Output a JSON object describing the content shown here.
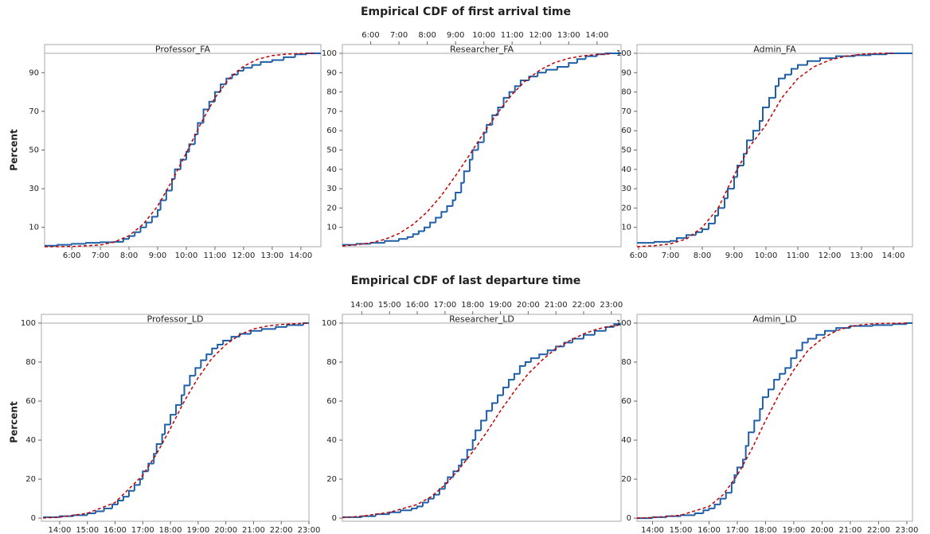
{
  "sections": [
    {
      "title": "Empirical CDF of first arrival time"
    },
    {
      "title": "Empirical CDF of last departure time"
    }
  ],
  "chart_data": [
    {
      "type": "ecdf",
      "title": "Professor_FA",
      "ylabel": "Percent",
      "xaxis_side": "bottom",
      "xlim": [
        5.05,
        14.7
      ],
      "ylim": [
        0,
        100
      ],
      "yticks": [
        10,
        30,
        50,
        70,
        90
      ],
      "xticks": [
        {
          "value": 6,
          "label": "6:00"
        },
        {
          "value": 7,
          "label": "7:00"
        },
        {
          "value": 8,
          "label": "8:00"
        },
        {
          "value": 9,
          "label": "9:00"
        },
        {
          "value": 10,
          "label": "10:00"
        },
        {
          "value": 11,
          "label": "11:00"
        },
        {
          "value": 12,
          "label": "12:00"
        },
        {
          "value": 13,
          "label": "13:00"
        },
        {
          "value": 14,
          "label": "14:00"
        }
      ],
      "series": [
        {
          "kind": "step",
          "color": "#1f5fa8",
          "x": [
            5.05,
            5.5,
            6,
            6.5,
            7,
            7.5,
            7.8,
            8,
            8.2,
            8.4,
            8.6,
            8.8,
            9,
            9.1,
            9.3,
            9.5,
            9.6,
            9.8,
            10,
            10.1,
            10.3,
            10.4,
            10.6,
            10.8,
            11,
            11.2,
            11.4,
            11.6,
            11.8,
            12,
            12.3,
            12.6,
            13,
            13.4,
            13.8,
            14.2
          ],
          "values": [
            0.5,
            1,
            1.5,
            2,
            2.3,
            2.5,
            4,
            5.5,
            7.5,
            10,
            12.5,
            15.5,
            19,
            24,
            29,
            35,
            40,
            45,
            49,
            53,
            58,
            64,
            71,
            75,
            80,
            84,
            87,
            89,
            91,
            92.5,
            94,
            95.5,
            96.5,
            98,
            99.5,
            100
          ]
        },
        {
          "kind": "dashed",
          "color": "#c00000",
          "x": [
            5.05,
            6,
            7,
            7.5,
            8,
            8.5,
            9,
            9.5,
            10,
            10.5,
            11,
            11.5,
            12,
            12.5,
            13,
            13.5,
            14,
            14.5
          ],
          "values": [
            0,
            0.1,
            0.9,
            2.5,
            5.7,
            11.7,
            21,
            34,
            48.5,
            63.5,
            77,
            87,
            93.3,
            97,
            98.8,
            99.6,
            99.9,
            100
          ]
        }
      ]
    },
    {
      "type": "ecdf",
      "title": "Researcher_FA",
      "xaxis_side": "top",
      "xlim": [
        5.0,
        14.85
      ],
      "ylim": [
        0,
        100
      ],
      "yticks": [
        10,
        20,
        30,
        40,
        50,
        60,
        70,
        80,
        90,
        100
      ],
      "xticks": [
        {
          "value": 6,
          "label": "6:00"
        },
        {
          "value": 7,
          "label": "7:00"
        },
        {
          "value": 8,
          "label": "8:00"
        },
        {
          "value": 9,
          "label": "9:00"
        },
        {
          "value": 10,
          "label": "10:00"
        },
        {
          "value": 11,
          "label": "11:00"
        },
        {
          "value": 12,
          "label": "12:00"
        },
        {
          "value": 13,
          "label": "13:00"
        },
        {
          "value": 14,
          "label": "14:00"
        }
      ],
      "series": [
        {
          "kind": "step",
          "color": "#1f5fa8",
          "x": [
            5,
            5.5,
            6,
            6.5,
            7,
            7.3,
            7.5,
            7.7,
            7.9,
            8.1,
            8.3,
            8.5,
            8.7,
            8.9,
            9,
            9.2,
            9.3,
            9.5,
            9.6,
            9.8,
            10,
            10.1,
            10.3,
            10.5,
            10.7,
            10.9,
            11.1,
            11.3,
            11.6,
            11.9,
            12.2,
            12.6,
            13,
            13.3,
            13.6,
            14,
            14.3
          ],
          "values": [
            1,
            1.5,
            2,
            3,
            4,
            5,
            6.5,
            8,
            10,
            12.5,
            15,
            18,
            21,
            24,
            28,
            33,
            39,
            45,
            50,
            54,
            59,
            63,
            68,
            72,
            77,
            80,
            83,
            86,
            88,
            90,
            91.5,
            93,
            95,
            97,
            98.5,
            99.5,
            100
          ]
        },
        {
          "kind": "dashed",
          "color": "#c00000",
          "x": [
            5,
            5.5,
            6,
            6.5,
            7,
            7.5,
            8,
            8.5,
            9,
            9.5,
            10,
            10.5,
            11,
            11.5,
            12,
            12.5,
            13,
            13.5,
            14,
            14.5
          ],
          "values": [
            0.4,
            1,
            2,
            3.8,
            6.8,
            11.5,
            18,
            26.5,
            36.7,
            47.6,
            59,
            69.5,
            78.8,
            86.2,
            91.5,
            95.2,
            97.4,
            98.7,
            99.4,
            99.7
          ]
        }
      ]
    },
    {
      "type": "ecdf",
      "title": "Admin_FA",
      "xaxis_side": "bottom",
      "xlim": [
        5.95,
        14.6
      ],
      "ylim": [
        0,
        100
      ],
      "yticks": [
        10,
        20,
        30,
        40,
        50,
        60,
        70,
        80,
        90,
        100
      ],
      "xticks": [
        {
          "value": 6,
          "label": "6:00"
        },
        {
          "value": 7,
          "label": "7:00"
        },
        {
          "value": 8,
          "label": "8:00"
        },
        {
          "value": 9,
          "label": "9:00"
        },
        {
          "value": 10,
          "label": "10:00"
        },
        {
          "value": 11,
          "label": "11:00"
        },
        {
          "value": 12,
          "label": "12:00"
        },
        {
          "value": 13,
          "label": "13:00"
        },
        {
          "value": 14,
          "label": "14:00"
        }
      ],
      "series": [
        {
          "kind": "step",
          "color": "#1f5fa8",
          "x": [
            5.95,
            6.5,
            7,
            7.2,
            7.5,
            7.8,
            8,
            8.2,
            8.4,
            8.5,
            8.7,
            8.8,
            9,
            9.1,
            9.3,
            9.4,
            9.6,
            9.8,
            9.9,
            10.1,
            10.3,
            10.4,
            10.6,
            10.8,
            11,
            11.3,
            11.7,
            12.2,
            12.8,
            13.3,
            13.8
          ],
          "values": [
            2,
            2.5,
            3,
            4.5,
            6,
            7.5,
            9,
            12,
            16,
            20,
            25,
            30,
            36,
            42,
            48,
            55,
            60,
            65,
            72,
            77,
            83,
            87,
            89,
            92,
            94,
            96,
            97.5,
            98.5,
            99,
            99.5,
            100
          ]
        },
        {
          "kind": "dashed",
          "color": "#c00000",
          "x": [
            5.95,
            6.5,
            7,
            7.5,
            8,
            8.5,
            9,
            9.5,
            10,
            10.5,
            11,
            11.5,
            12,
            12.5,
            13,
            13.5,
            14
          ],
          "values": [
            0,
            0.5,
            1.5,
            4,
            10,
            20,
            37,
            52,
            63,
            77,
            87,
            93,
            96.5,
            98.5,
            99.5,
            100,
            100
          ]
        }
      ]
    },
    {
      "type": "ecdf",
      "title": "Professor_LD",
      "ylabel": "Percent",
      "xaxis_side": "bottom",
      "xlim": [
        13.34,
        23.0
      ],
      "ylim": [
        -1.6,
        100
      ],
      "yticks": [
        0,
        20,
        40,
        60,
        80,
        100
      ],
      "xticks": [
        {
          "value": 14,
          "label": "14:00"
        },
        {
          "value": 15,
          "label": "15:00"
        },
        {
          "value": 16,
          "label": "16:00"
        },
        {
          "value": 17,
          "label": "17:00"
        },
        {
          "value": 18,
          "label": "18:00"
        },
        {
          "value": 19,
          "label": "19:00"
        },
        {
          "value": 20,
          "label": "20:00"
        },
        {
          "value": 21,
          "label": "21:00"
        },
        {
          "value": 22,
          "label": "22:00"
        },
        {
          "value": 23,
          "label": "23:00"
        }
      ],
      "series": [
        {
          "kind": "step",
          "color": "#1f5fa8",
          "x": [
            13.4,
            14,
            14.5,
            15,
            15.3,
            15.6,
            15.9,
            16.1,
            16.3,
            16.5,
            16.7,
            16.9,
            17,
            17.2,
            17.4,
            17.5,
            17.7,
            17.8,
            18,
            18.2,
            18.4,
            18.5,
            18.7,
            18.9,
            19.1,
            19.3,
            19.5,
            19.7,
            19.9,
            20.2,
            20.5,
            20.9,
            21.3,
            21.8,
            22.2,
            22.8
          ],
          "values": [
            0.5,
            1,
            1.5,
            2.5,
            3.5,
            5,
            7,
            9,
            11,
            14,
            17,
            20,
            24,
            28,
            33,
            38,
            43,
            48,
            53,
            58,
            63,
            68,
            73,
            77,
            81,
            84,
            87,
            89,
            91,
            93,
            94.5,
            96,
            97,
            98,
            99,
            100
          ]
        },
        {
          "kind": "dashed",
          "color": "#c00000",
          "x": [
            13.4,
            14,
            15,
            16,
            17,
            17.5,
            18,
            18.5,
            19,
            19.5,
            20,
            20.5,
            21,
            21.5,
            22,
            22.5,
            23
          ],
          "values": [
            0.1,
            0.5,
            2.5,
            8,
            22,
            33,
            46,
            60,
            72,
            82,
            89,
            94,
            97,
            98.5,
            99.3,
            99.7,
            100
          ]
        }
      ]
    },
    {
      "type": "ecdf",
      "title": "Researcher_LD",
      "xaxis_side": "top",
      "xlim": [
        13.3,
        23.35
      ],
      "ylim": [
        -1.6,
        100
      ],
      "yticks": [
        0,
        20,
        40,
        60,
        80,
        100
      ],
      "xticks": [
        {
          "value": 14,
          "label": "14:00"
        },
        {
          "value": 15,
          "label": "15:00"
        },
        {
          "value": 16,
          "label": "16:00"
        },
        {
          "value": 17,
          "label": "17:00"
        },
        {
          "value": 18,
          "label": "18:00"
        },
        {
          "value": 19,
          "label": "19:00"
        },
        {
          "value": 20,
          "label": "20:00"
        },
        {
          "value": 21,
          "label": "21:00"
        },
        {
          "value": 22,
          "label": "22:00"
        },
        {
          "value": 23,
          "label": "23:00"
        }
      ],
      "series": [
        {
          "kind": "step",
          "color": "#1f5fa8",
          "x": [
            13.3,
            14,
            14.5,
            15,
            15.4,
            15.8,
            16,
            16.2,
            16.4,
            16.6,
            16.8,
            17,
            17.1,
            17.3,
            17.5,
            17.6,
            17.8,
            18,
            18.1,
            18.3,
            18.5,
            18.7,
            18.9,
            19.1,
            19.3,
            19.5,
            19.7,
            19.9,
            20.1,
            20.4,
            20.7,
            21,
            21.3,
            21.6,
            22,
            22.4,
            22.8,
            23.1
          ],
          "values": [
            0.5,
            1,
            2,
            3,
            4,
            5,
            6,
            8,
            10,
            12,
            15,
            18,
            21,
            24,
            27,
            30,
            35,
            40,
            45,
            50,
            55,
            59,
            63,
            67,
            71,
            74,
            78,
            80,
            82,
            84,
            86,
            88,
            90,
            92,
            94,
            96,
            98,
            99.5
          ]
        },
        {
          "kind": "dashed",
          "color": "#c00000",
          "x": [
            13.3,
            14,
            15,
            16,
            16.5,
            17,
            17.5,
            18,
            18.5,
            19,
            19.5,
            20,
            20.5,
            21,
            21.5,
            22,
            22.5,
            23,
            23.3
          ],
          "values": [
            0.3,
            1,
            3,
            7,
            11,
            17,
            25,
            34,
            44,
            55,
            65,
            74,
            81,
            87,
            91,
            94.5,
            97,
            98.5,
            99
          ]
        }
      ]
    },
    {
      "type": "ecdf",
      "title": "Admin_LD",
      "xaxis_side": "bottom",
      "xlim": [
        13.45,
        23.2
      ],
      "ylim": [
        -1.6,
        100
      ],
      "yticks": [
        0,
        20,
        40,
        60,
        80,
        100
      ],
      "xticks": [
        {
          "value": 14,
          "label": "14:00"
        },
        {
          "value": 15,
          "label": "15:00"
        },
        {
          "value": 16,
          "label": "16:00"
        },
        {
          "value": 17,
          "label": "17:00"
        },
        {
          "value": 18,
          "label": "18:00"
        },
        {
          "value": 19,
          "label": "19:00"
        },
        {
          "value": 20,
          "label": "20:00"
        },
        {
          "value": 21,
          "label": "21:00"
        },
        {
          "value": 22,
          "label": "22:00"
        },
        {
          "value": 23,
          "label": "23:00"
        }
      ],
      "series": [
        {
          "kind": "step",
          "color": "#1f5fa8",
          "x": [
            13.45,
            14,
            14.5,
            15,
            15.5,
            15.8,
            16,
            16.2,
            16.4,
            16.6,
            16.8,
            16.9,
            17,
            17.2,
            17.3,
            17.4,
            17.6,
            17.8,
            17.9,
            18.1,
            18.3,
            18.5,
            18.7,
            18.9,
            19.1,
            19.3,
            19.5,
            19.8,
            20.1,
            20.5,
            21,
            21.8,
            22.5,
            23
          ],
          "values": [
            0,
            0.5,
            1,
            1.5,
            2.5,
            4,
            5,
            7,
            10,
            13,
            18,
            22,
            26,
            30,
            37,
            44,
            50,
            56,
            62,
            66,
            71,
            74,
            77,
            82,
            86,
            90,
            92,
            94,
            96,
            97.5,
            98.5,
            99,
            99.5,
            100
          ]
        },
        {
          "kind": "dashed",
          "color": "#c00000",
          "x": [
            13.45,
            14,
            15,
            16,
            16.5,
            17,
            17.5,
            18,
            18.5,
            19,
            19.5,
            20,
            20.5,
            21,
            21.5,
            22,
            23
          ],
          "values": [
            0,
            0.3,
            1.5,
            6,
            12,
            22,
            35,
            50,
            64,
            76,
            86,
            92,
            96,
            98.3,
            99.3,
            99.8,
            100
          ]
        }
      ]
    }
  ]
}
